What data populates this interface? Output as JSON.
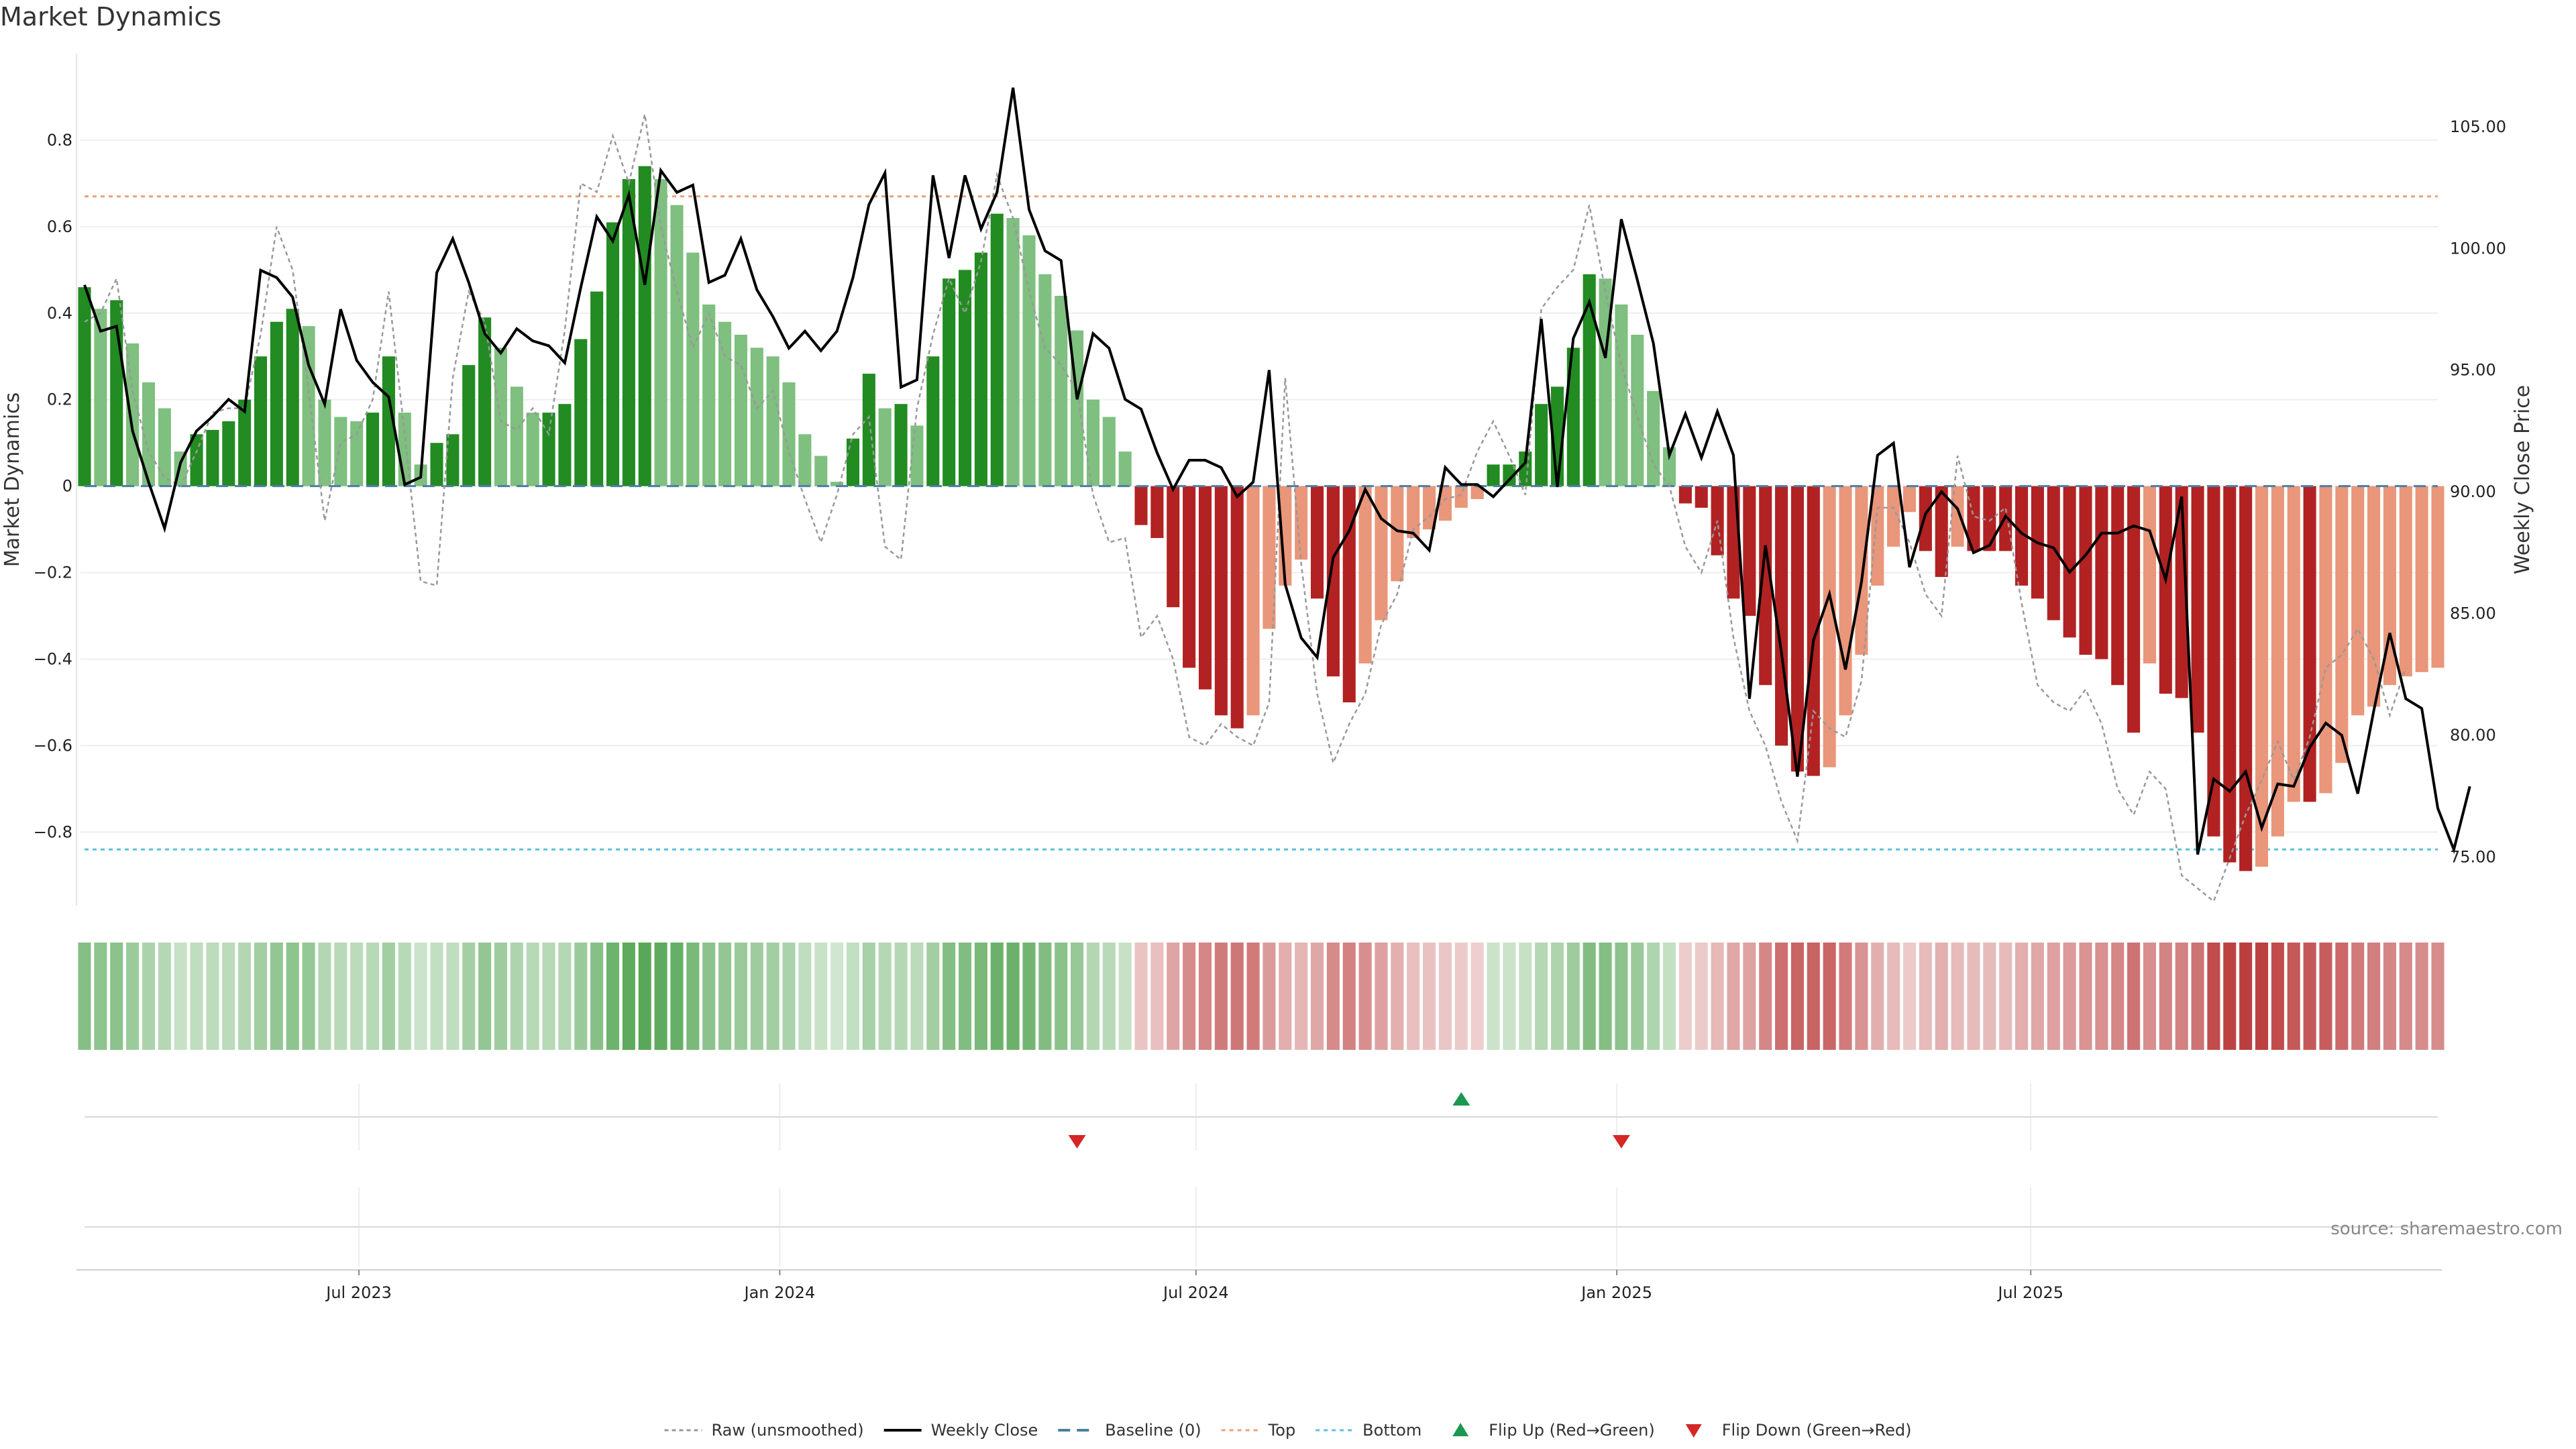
{
  "chart_data": {
    "type": "bar",
    "title": "Market Dynamics",
    "ylabel": "Market Dynamics",
    "y2label": "Weekly Close Price",
    "ylim": [
      -0.97,
      1.0
    ],
    "y2lim": [
      73.0,
      108.0
    ],
    "y_ticks": [
      0.8,
      0.6,
      0.4,
      0.2,
      0,
      -0.2,
      -0.4,
      -0.6,
      -0.8
    ],
    "y_tick_labels": [
      "0.8",
      "0.6",
      "0.4",
      "0.2",
      "0",
      "−0.2",
      "−0.4",
      "−0.6",
      "−0.8"
    ],
    "y2_ticks": [
      105,
      100,
      95,
      90,
      85,
      80,
      75
    ],
    "y2_tick_labels": [
      "105.00",
      "100.00",
      "95.00",
      "90.00",
      "85.00",
      "80.00",
      "75.00"
    ],
    "x_start": "2023-03-03",
    "x_step_days": 7,
    "x_ticks": [
      {
        "date": "2023-07-01",
        "label": "Jul 2023"
      },
      {
        "date": "2024-01-01",
        "label": "Jan 2024"
      },
      {
        "date": "2024-07-01",
        "label": "Jul 2024"
      },
      {
        "date": "2025-01-01",
        "label": "Jan 2025"
      },
      {
        "date": "2025-07-01",
        "label": "Jul 2025"
      }
    ],
    "top_level": 0.67,
    "bottom_level": -0.84,
    "baseline": 0,
    "flip_up": [
      "2024-10-25"
    ],
    "flip_down": [
      "2024-05-10",
      "2025-01-03"
    ],
    "legend": [
      {
        "key": "raw",
        "label": "Raw (unsmoothed)"
      },
      {
        "key": "close",
        "label": "Weekly Close"
      },
      {
        "key": "baseline",
        "label": "Baseline (0)"
      },
      {
        "key": "top",
        "label": "Top"
      },
      {
        "key": "bottom",
        "label": "Bottom"
      },
      {
        "key": "flip_up",
        "label": "Flip Up (Red→Green)"
      },
      {
        "key": "flip_down",
        "label": "Flip Down (Green→Red)"
      }
    ],
    "colors": {
      "green_strong": "#228b22",
      "green_light": "#7fbf7f",
      "red_strong": "#b22222",
      "red_light": "#e9967a",
      "raw": "#999999",
      "close": "#000000",
      "baseline": "#4a7fa5",
      "top": "#e8a07a",
      "bottom": "#5bc0de",
      "flip_up": "#1a9850",
      "flip_down": "#d62728"
    },
    "series": [
      {
        "name": "Market Dynamics",
        "values": [
          0.46,
          0.41,
          0.43,
          0.33,
          0.24,
          0.18,
          0.08,
          0.12,
          0.13,
          0.15,
          0.2,
          0.3,
          0.38,
          0.41,
          0.37,
          0.2,
          0.16,
          0.15,
          0.17,
          0.3,
          0.17,
          0.05,
          0.1,
          0.12,
          0.28,
          0.39,
          0.32,
          0.23,
          0.17,
          0.17,
          0.19,
          0.34,
          0.45,
          0.61,
          0.71,
          0.74,
          0.71,
          0.65,
          0.54,
          0.42,
          0.38,
          0.35,
          0.32,
          0.3,
          0.24,
          0.12,
          0.07,
          0.01,
          0.11,
          0.26,
          0.18,
          0.19,
          0.14,
          0.3,
          0.48,
          0.5,
          0.54,
          0.63,
          0.62,
          0.58,
          0.49,
          0.44,
          0.36,
          0.2,
          0.16,
          0.08,
          -0.09,
          -0.12,
          -0.28,
          -0.42,
          -0.47,
          -0.53,
          -0.56,
          -0.53,
          -0.33,
          -0.23,
          -0.17,
          -0.26,
          -0.44,
          -0.5,
          -0.41,
          -0.31,
          -0.22,
          -0.12,
          -0.1,
          -0.08,
          -0.05,
          -0.03,
          0.05,
          0.05,
          0.08,
          0.19,
          0.23,
          0.32,
          0.49,
          0.48,
          0.42,
          0.35,
          0.22,
          0.09,
          -0.04,
          -0.05,
          -0.16,
          -0.26,
          -0.3,
          -0.46,
          -0.6,
          -0.66,
          -0.67,
          -0.65,
          -0.53,
          -0.39,
          -0.23,
          -0.14,
          -0.06,
          -0.15,
          -0.21,
          -0.14,
          -0.15,
          -0.15,
          -0.15,
          -0.23,
          -0.26,
          -0.31,
          -0.35,
          -0.39,
          -0.4,
          -0.46,
          -0.57,
          -0.41,
          -0.48,
          -0.49,
          -0.57,
          -0.81,
          -0.87,
          -0.89,
          -0.88,
          -0.81,
          -0.73,
          -0.73,
          -0.71,
          -0.64,
          -0.53,
          -0.51,
          -0.46,
          -0.44,
          -0.43,
          -0.42
        ]
      },
      {
        "name": "Raw (unsmoothed)",
        "values": [
          0.38,
          0.4,
          0.48,
          0.22,
          0.08,
          0.02,
          0.0,
          0.08,
          0.17,
          0.18,
          0.18,
          0.35,
          0.6,
          0.5,
          0.22,
          -0.08,
          0.1,
          0.12,
          0.2,
          0.45,
          0.12,
          -0.22,
          -0.23,
          0.25,
          0.45,
          0.38,
          0.15,
          0.13,
          0.18,
          0.12,
          0.36,
          0.7,
          0.68,
          0.81,
          0.7,
          0.86,
          0.6,
          0.45,
          0.32,
          0.4,
          0.3,
          0.28,
          0.18,
          0.22,
          0.08,
          -0.03,
          -0.13,
          -0.02,
          0.12,
          0.16,
          -0.14,
          -0.17,
          0.18,
          0.35,
          0.48,
          0.4,
          0.52,
          0.72,
          0.62,
          0.45,
          0.32,
          0.28,
          0.22,
          -0.02,
          -0.13,
          -0.12,
          -0.35,
          -0.3,
          -0.4,
          -0.58,
          -0.6,
          -0.55,
          -0.58,
          -0.6,
          -0.5,
          0.25,
          -0.18,
          -0.48,
          -0.64,
          -0.55,
          -0.48,
          -0.32,
          -0.25,
          -0.1,
          -0.07,
          -0.03,
          -0.02,
          0.08,
          0.15,
          0.07,
          -0.02,
          0.41,
          0.46,
          0.5,
          0.65,
          0.45,
          0.28,
          0.16,
          0.05,
          0.0,
          -0.14,
          -0.2,
          -0.08,
          -0.35,
          -0.52,
          -0.6,
          -0.73,
          -0.82,
          -0.52,
          -0.56,
          -0.58,
          -0.45,
          -0.05,
          -0.05,
          -0.13,
          -0.25,
          -0.3,
          0.07,
          -0.07,
          -0.08,
          -0.05,
          -0.27,
          -0.46,
          -0.5,
          -0.52,
          -0.47,
          -0.55,
          -0.7,
          -0.76,
          -0.66,
          -0.7,
          -0.9,
          -0.93,
          -0.96,
          -0.86,
          -0.76,
          -0.68,
          -0.59,
          -0.68,
          -0.58,
          -0.42,
          -0.39,
          -0.33,
          -0.4,
          -0.53,
          -0.42
        ]
      },
      {
        "name": "Weekly Close",
        "values": [
          98.5,
          96.6,
          96.8,
          92.5,
          90.4,
          88.5,
          91.2,
          92.5,
          93.1,
          93.8,
          93.3,
          99.1,
          98.8,
          98.0,
          95.2,
          93.6,
          97.5,
          95.4,
          94.5,
          93.9,
          90.3,
          90.6,
          99.0,
          100.4,
          98.6,
          96.5,
          95.7,
          96.7,
          96.2,
          96.0,
          95.3,
          98.4,
          101.3,
          100.3,
          102.2,
          98.5,
          103.2,
          102.3,
          102.6,
          98.6,
          98.9,
          100.4,
          98.3,
          97.2,
          95.9,
          96.6,
          95.8,
          96.6,
          98.8,
          101.8,
          103.1,
          94.3,
          94.6,
          103.0,
          99.6,
          103.0,
          100.8,
          102.3,
          106.6,
          101.6,
          99.9,
          99.5,
          93.8,
          96.5,
          95.9,
          93.8,
          93.4,
          91.6,
          90.1,
          91.3,
          91.3,
          91.0,
          89.8,
          90.4,
          95.0,
          86.2,
          84.0,
          83.2,
          87.3,
          88.4,
          90.1,
          88.9,
          88.4,
          88.3,
          87.6,
          91.0,
          90.3,
          90.3,
          89.8,
          90.5,
          91.2,
          97.1,
          90.2,
          96.3,
          97.8,
          95.5,
          101.2,
          98.7,
          96.1,
          91.5,
          93.2,
          91.4,
          93.3,
          91.5,
          81.5,
          87.8,
          83.4,
          78.3,
          83.9,
          85.8,
          82.7,
          86.3,
          91.5,
          92.0,
          86.9,
          89.1,
          90.0,
          89.3,
          87.5,
          87.8,
          89.0,
          88.3,
          87.9,
          87.7,
          86.7,
          87.4,
          88.3,
          88.3,
          88.6,
          88.4,
          86.4,
          89.8,
          75.1,
          78.2,
          77.7,
          78.5,
          76.2,
          78.0,
          77.9,
          79.5,
          80.5,
          80.0,
          77.6,
          81.0,
          84.2,
          81.5,
          81.1,
          77.0,
          75.3,
          77.9
        ]
      }
    ]
  },
  "source_text": "source: sharemaestro.com"
}
